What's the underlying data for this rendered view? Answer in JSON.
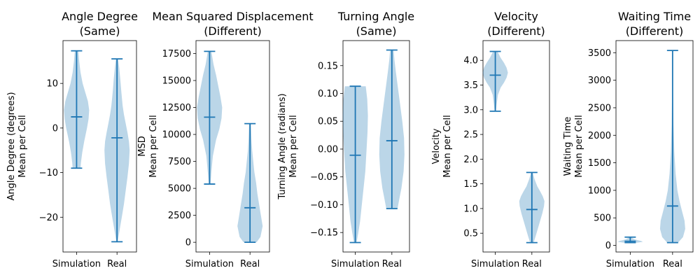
{
  "colors": {
    "violin": "#1f77b4",
    "axes": "#000000",
    "background": "#ffffff"
  },
  "chart_data": [
    {
      "type": "violin",
      "title": [
        "Angle Degree",
        "(Same)"
      ],
      "ylabel": [
        "Angle Degree (degrees)",
        "Mean per Cell"
      ],
      "categories": [
        "Simulation",
        "Real"
      ],
      "ylim": [
        -27.8,
        19.6
      ],
      "yticks": [
        -20,
        -10,
        0,
        10
      ],
      "ytick_labels": [
        "−20",
        "−10",
        "0",
        "10"
      ],
      "series": [
        {
          "category": "Simulation",
          "min": -9.0,
          "max": 17.3,
          "median": 2.5,
          "density": [
            [
              -9.0,
              0.18
            ],
            [
              -7.8,
              0.2
            ],
            [
              -5.5,
              0.26
            ],
            [
              -3,
              0.35
            ],
            [
              0,
              0.48
            ],
            [
              2,
              0.55
            ],
            [
              4,
              0.58
            ],
            [
              6,
              0.52
            ],
            [
              8,
              0.4
            ],
            [
              10,
              0.28
            ],
            [
              12.5,
              0.18
            ],
            [
              15,
              0.12
            ],
            [
              17.3,
              0.08
            ]
          ]
        },
        {
          "category": "Real",
          "min": -25.5,
          "max": 15.5,
          "median": -2.2,
          "density": [
            [
              -25.5,
              0.03
            ],
            [
              -24,
              0.08
            ],
            [
              -22,
              0.15
            ],
            [
              -20,
              0.22
            ],
            [
              -17,
              0.32
            ],
            [
              -14,
              0.4
            ],
            [
              -11,
              0.48
            ],
            [
              -8,
              0.55
            ],
            [
              -5,
              0.58
            ],
            [
              -3,
              0.55
            ],
            [
              -1,
              0.48
            ],
            [
              1,
              0.4
            ],
            [
              3,
              0.32
            ],
            [
              5,
              0.26
            ],
            [
              8,
              0.2
            ],
            [
              11,
              0.15
            ],
            [
              13.5,
              0.1
            ],
            [
              15.5,
              0.05
            ]
          ]
        }
      ]
    },
    {
      "type": "violin",
      "title": [
        "Mean Squared Displacement",
        "(Different)"
      ],
      "ylabel": [
        "MSD",
        "Mean per Cell"
      ],
      "categories": [
        "Simulation",
        "Real"
      ],
      "ylim": [
        -900,
        18700
      ],
      "yticks": [
        0,
        2500,
        5000,
        7500,
        10000,
        12500,
        15000,
        17500
      ],
      "ytick_labels": [
        "0",
        "2500",
        "5000",
        "7500",
        "10000",
        "12500",
        "15000",
        "17500"
      ],
      "series": [
        {
          "category": "Simulation",
          "min": 5400,
          "max": 17700,
          "median": 11600,
          "density": [
            [
              5400,
              0.04
            ],
            [
              6500,
              0.08
            ],
            [
              8000,
              0.15
            ],
            [
              9500,
              0.3
            ],
            [
              10500,
              0.45
            ],
            [
              11500,
              0.55
            ],
            [
              12500,
              0.58
            ],
            [
              13500,
              0.5
            ],
            [
              14500,
              0.4
            ],
            [
              15500,
              0.3
            ],
            [
              16500,
              0.18
            ],
            [
              17700,
              0.08
            ]
          ]
        },
        {
          "category": "Real",
          "min": 0,
          "max": 11000,
          "median": 3200,
          "density": [
            [
              0,
              0.3
            ],
            [
              500,
              0.48
            ],
            [
              1500,
              0.58
            ],
            [
              2500,
              0.5
            ],
            [
              3500,
              0.42
            ],
            [
              4500,
              0.34
            ],
            [
              5500,
              0.28
            ],
            [
              6500,
              0.2
            ],
            [
              7500,
              0.15
            ],
            [
              8500,
              0.1
            ],
            [
              9500,
              0.07
            ],
            [
              11000,
              0.04
            ]
          ]
        }
      ]
    },
    {
      "type": "violin",
      "title": [
        "Turning Angle",
        "(Same)"
      ],
      "ylabel": [
        "Turning Angle (radians)",
        "Mean per Cell"
      ],
      "categories": [
        "Simulation",
        "Real"
      ],
      "ylim": [
        -0.185,
        0.195
      ],
      "yticks": [
        -0.15,
        -0.1,
        -0.05,
        0.0,
        0.05,
        0.1,
        0.15
      ],
      "ytick_labels": [
        "−0.15",
        "−0.10",
        "−0.05",
        "0.00",
        "0.05",
        "0.10",
        "0.15"
      ],
      "series": [
        {
          "category": "Simulation",
          "min": -0.168,
          "max": 0.113,
          "median": -0.011,
          "density": [
            [
              -0.168,
              0.06
            ],
            [
              -0.15,
              0.14
            ],
            [
              -0.13,
              0.22
            ],
            [
              -0.1,
              0.3
            ],
            [
              -0.07,
              0.38
            ],
            [
              -0.04,
              0.46
            ],
            [
              0,
              0.52
            ],
            [
              0.03,
              0.56
            ],
            [
              0.06,
              0.58
            ],
            [
              0.09,
              0.55
            ],
            [
              0.113,
              0.48
            ]
          ]
        },
        {
          "category": "Real",
          "min": -0.107,
          "max": 0.178,
          "median": 0.015,
          "density": [
            [
              -0.107,
              0.26
            ],
            [
              -0.09,
              0.34
            ],
            [
              -0.07,
              0.44
            ],
            [
              -0.04,
              0.54
            ],
            [
              -0.01,
              0.58
            ],
            [
              0.02,
              0.56
            ],
            [
              0.05,
              0.48
            ],
            [
              0.08,
              0.38
            ],
            [
              0.11,
              0.28
            ],
            [
              0.14,
              0.18
            ],
            [
              0.16,
              0.12
            ],
            [
              0.178,
              0.08
            ]
          ]
        }
      ]
    },
    {
      "type": "violin",
      "title": [
        "Velocity",
        "(Different)"
      ],
      "ylabel": [
        "Velocity",
        "Mean per Cell"
      ],
      "categories": [
        "Simulation",
        "Real"
      ],
      "ylim": [
        0.12,
        4.4
      ],
      "yticks": [
        0.5,
        1.0,
        1.5,
        2.0,
        2.5,
        3.0,
        3.5,
        4.0
      ],
      "ytick_labels": [
        "0.5",
        "1.0",
        "1.5",
        "2.0",
        "2.5",
        "3.0",
        "3.5",
        "4.0"
      ],
      "series": [
        {
          "category": "Simulation",
          "min": 2.97,
          "max": 4.18,
          "median": 3.7,
          "density": [
            [
              2.97,
              0.03
            ],
            [
              3.1,
              0.06
            ],
            [
              3.3,
              0.12
            ],
            [
              3.45,
              0.25
            ],
            [
              3.55,
              0.4
            ],
            [
              3.65,
              0.52
            ],
            [
              3.75,
              0.58
            ],
            [
              3.85,
              0.52
            ],
            [
              3.95,
              0.4
            ],
            [
              4.05,
              0.25
            ],
            [
              4.18,
              0.1
            ]
          ]
        },
        {
          "category": "Real",
          "min": 0.31,
          "max": 1.73,
          "median": 0.98,
          "density": [
            [
              0.31,
              0.08
            ],
            [
              0.45,
              0.18
            ],
            [
              0.6,
              0.28
            ],
            [
              0.75,
              0.38
            ],
            [
              0.9,
              0.48
            ],
            [
              1.05,
              0.56
            ],
            [
              1.15,
              0.58
            ],
            [
              1.25,
              0.5
            ],
            [
              1.35,
              0.38
            ],
            [
              1.45,
              0.25
            ],
            [
              1.6,
              0.12
            ],
            [
              1.73,
              0.04
            ]
          ]
        }
      ]
    },
    {
      "type": "violin",
      "title": [
        "Waiting Time",
        "(Different)"
      ],
      "ylabel": [
        "Waiting Time",
        "Mean per Cell"
      ],
      "categories": [
        "Simulation",
        "Real"
      ],
      "ylim": [
        -120,
        3720
      ],
      "yticks": [
        0,
        500,
        1000,
        1500,
        2000,
        2500,
        3000,
        3500
      ],
      "ytick_labels": [
        "0",
        "500",
        "1000",
        "1500",
        "2000",
        "2500",
        "3000",
        "3500"
      ],
      "series": [
        {
          "category": "Simulation",
          "min": 50,
          "max": 150,
          "median": 75,
          "density": [
            [
              50,
              0.32
            ],
            [
              65,
              0.58
            ],
            [
              80,
              0.5
            ],
            [
              95,
              0.34
            ],
            [
              110,
              0.2
            ],
            [
              130,
              0.1
            ],
            [
              150,
              0.04
            ]
          ]
        },
        {
          "category": "Real",
          "min": 50,
          "max": 3540,
          "median": 715,
          "density": [
            [
              50,
              0.25
            ],
            [
              150,
              0.48
            ],
            [
              300,
              0.58
            ],
            [
              450,
              0.55
            ],
            [
              600,
              0.45
            ],
            [
              800,
              0.32
            ],
            [
              1000,
              0.22
            ],
            [
              1300,
              0.14
            ],
            [
              1700,
              0.08
            ],
            [
              2200,
              0.04
            ],
            [
              2800,
              0.02
            ],
            [
              3540,
              0.015
            ]
          ]
        }
      ]
    }
  ]
}
